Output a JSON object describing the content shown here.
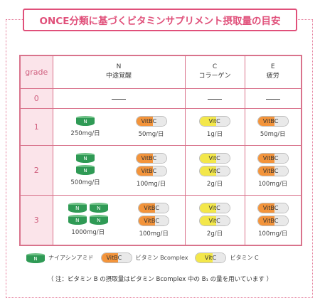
{
  "title": "ONCE分類に基づくビタミンサプリメント摂取量の目安",
  "header": {
    "grade": "grade",
    "n": {
      "letter": "N",
      "name": "中途覚醒"
    },
    "c": {
      "letter": "C",
      "name": "コラーゲン"
    },
    "e": {
      "letter": "E",
      "name": "疲労"
    }
  },
  "rows": [
    {
      "grade": "0"
    },
    {
      "grade": "1",
      "n": "250mg/日",
      "b": "50mg/日",
      "c": "1g/日",
      "e": "50mg/日"
    },
    {
      "grade": "2",
      "n": "500mg/日",
      "b": "100mg/日",
      "c": "2g/日",
      "e": "100mg/日"
    },
    {
      "grade": "3",
      "n": "1000mg/日",
      "b": "100mg/日",
      "c": "2g/日",
      "e": "100mg/日"
    }
  ],
  "pill": {
    "vitb_left": "VitB",
    "vitb_right": "C",
    "vitc_left": "Vit",
    "vitc_right": "C",
    "n_mark": "N"
  },
  "legend": {
    "niacinamide": "ナイアシンアミド",
    "vitb_label": "ビタミン Bcomplex",
    "vitc_label": "ビタミン C"
  },
  "note": "（ 注：ビタミン B の摂取量はビタミン Bcomplex 中の B₁ の量を用いています ）",
  "colors": {
    "accent": "#e0507a",
    "border": "#d9738c",
    "grade_bg": "#fbe4ea",
    "green": "#2f9a55",
    "orange": "#f3943b",
    "yellow": "#f3e74a"
  }
}
